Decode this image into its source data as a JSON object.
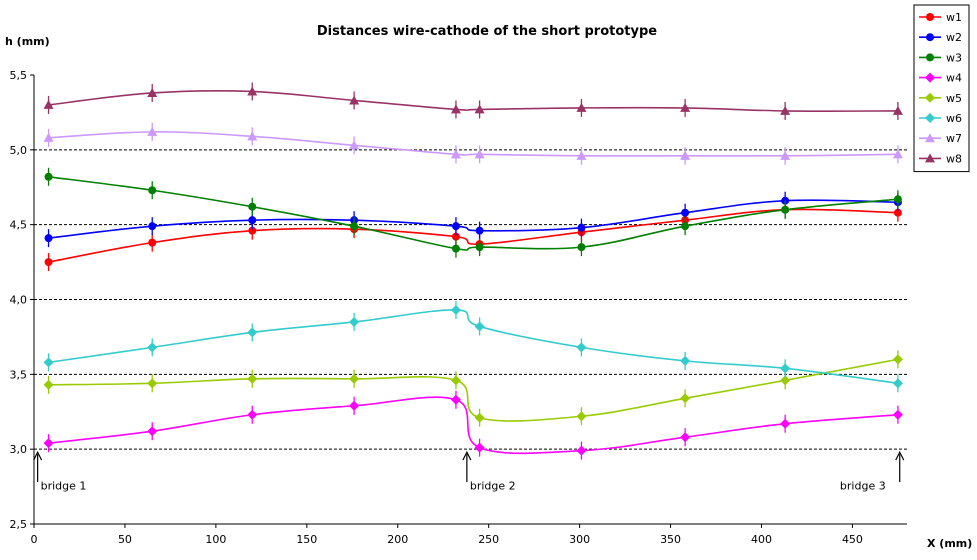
{
  "chart_data": {
    "type": "line",
    "title": "Distances wire-cathode of the short prototype",
    "xlabel": "X (mm)",
    "ylabel": "h (mm)",
    "xlim": [
      0,
      480
    ],
    "ylim": [
      2.5,
      5.5
    ],
    "x_ticks": [
      "0",
      "50",
      "100",
      "150",
      "200",
      "250",
      "300",
      "350",
      "400",
      "450"
    ],
    "y_ticks": [
      "2,5",
      "3,0",
      "3,5",
      "4,0",
      "4,5",
      "5,0",
      "5,5"
    ],
    "grid": "dashed horizontal at 3.0, 3.5, 4.0, 4.5, 5.0",
    "legend_position": "right",
    "error_bars": true,
    "x": [
      8,
      65,
      120,
      176,
      232,
      245,
      301,
      358,
      413,
      475
    ],
    "series": [
      {
        "name": "w1",
        "color": "#ff0000",
        "marker": "circle",
        "values": [
          4.25,
          4.38,
          4.46,
          4.47,
          4.42,
          4.37,
          4.45,
          4.53,
          4.6,
          4.58
        ]
      },
      {
        "name": "w2",
        "color": "#0000ff",
        "marker": "circle",
        "values": [
          4.41,
          4.49,
          4.53,
          4.53,
          4.49,
          4.46,
          4.48,
          4.58,
          4.66,
          4.65
        ]
      },
      {
        "name": "w3",
        "color": "#008000",
        "marker": "circle",
        "values": [
          4.82,
          4.73,
          4.62,
          4.49,
          4.34,
          4.35,
          4.35,
          4.49,
          4.6,
          4.67
        ]
      },
      {
        "name": "w4",
        "color": "#ff00ff",
        "marker": "diamond",
        "values": [
          3.04,
          3.12,
          3.23,
          3.29,
          3.33,
          3.01,
          2.99,
          3.08,
          3.17,
          3.23
        ]
      },
      {
        "name": "w5",
        "color": "#99cc00",
        "marker": "diamond",
        "values": [
          3.43,
          3.44,
          3.47,
          3.47,
          3.46,
          3.21,
          3.22,
          3.34,
          3.46,
          3.6
        ]
      },
      {
        "name": "w6",
        "color": "#33cccc",
        "marker": "diamond",
        "values": [
          3.58,
          3.68,
          3.78,
          3.85,
          3.93,
          3.82,
          3.68,
          3.59,
          3.54,
          3.44
        ]
      },
      {
        "name": "w7",
        "color": "#cc99ff",
        "marker": "triangle",
        "values": [
          5.08,
          5.12,
          5.09,
          5.03,
          4.97,
          4.97,
          4.96,
          4.96,
          4.96,
          4.97
        ]
      },
      {
        "name": "w8",
        "color": "#993366",
        "marker": "triangle",
        "values": [
          5.3,
          5.38,
          5.39,
          5.33,
          5.27,
          5.27,
          5.28,
          5.28,
          5.26,
          5.26
        ]
      }
    ],
    "annotations": [
      {
        "text": "bridge 1",
        "x": 2
      },
      {
        "text": "bridge 2",
        "x": 238
      },
      {
        "text": "bridge 3",
        "x": 476
      }
    ]
  }
}
